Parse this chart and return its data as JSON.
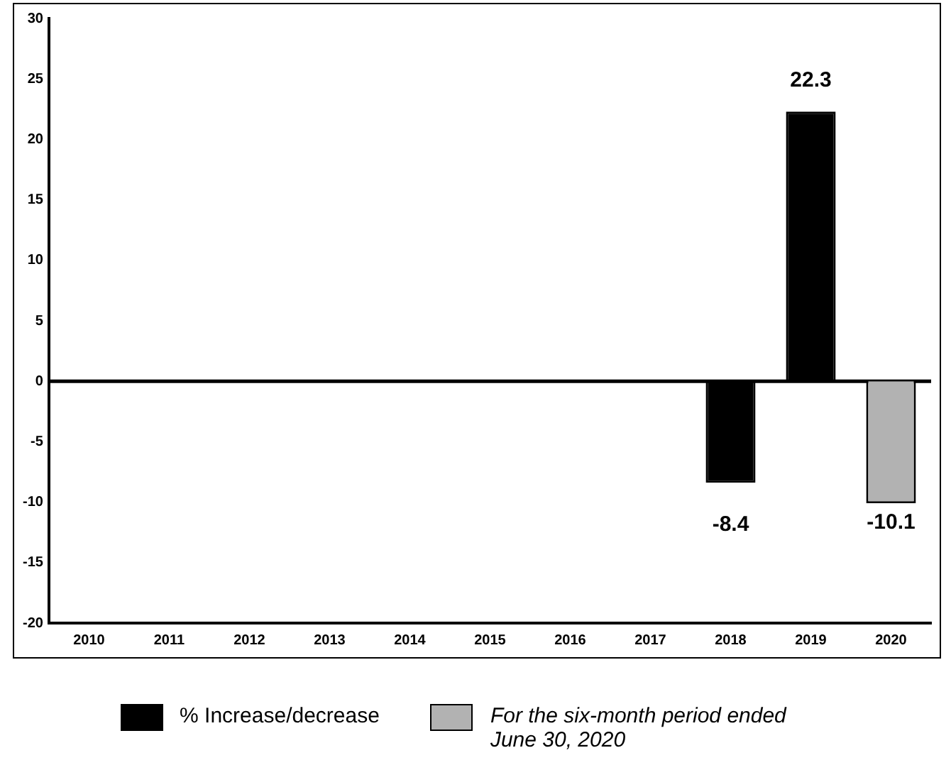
{
  "chart_data": {
    "type": "bar",
    "categories": [
      "2010",
      "2011",
      "2012",
      "2013",
      "2014",
      "2015",
      "2016",
      "2017",
      "2018",
      "2019",
      "2020"
    ],
    "series": [
      {
        "name": "% Increase/decrease",
        "color": "#000000",
        "values": [
          null,
          null,
          null,
          null,
          null,
          null,
          null,
          null,
          -8.4,
          22.3,
          null
        ]
      },
      {
        "name": "For the six-month period ended June 30, 2020",
        "color": "#b2b2b2",
        "values": [
          null,
          null,
          null,
          null,
          null,
          null,
          null,
          null,
          null,
          null,
          -10.1
        ]
      }
    ],
    "stacked": true,
    "ylim": [
      -20,
      30
    ],
    "yticks": [
      -20,
      -15,
      -10,
      -5,
      0,
      5,
      10,
      15,
      20,
      25,
      30
    ],
    "grid": false,
    "ref_lines": [
      {
        "axis": "y",
        "value": 0,
        "color": "#000000"
      }
    ],
    "legend": "bottom",
    "data_labels": true
  }
}
